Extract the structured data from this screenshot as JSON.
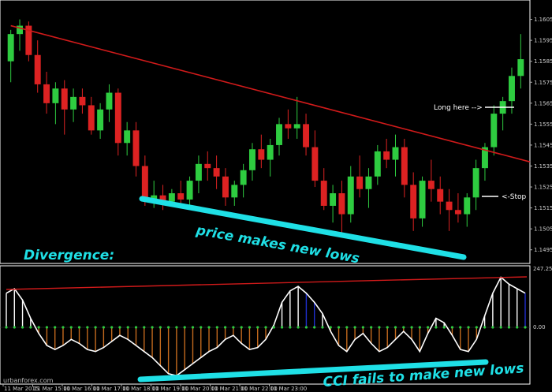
{
  "chart_data": [
    {
      "type": "candlestick",
      "y_ticks": [
        "1.1605",
        "1.1595",
        "1.1585",
        "1.1575",
        "1.1565",
        "1.1555",
        "1.1545",
        "1.1535",
        "1.1525",
        "1.1515",
        "1.1505",
        "1.1495"
      ],
      "ylim": [
        1.149,
        1.1612
      ],
      "candles": [
        [
          1.1585,
          1.16,
          1.1575,
          1.1598
        ],
        [
          1.1598,
          1.1605,
          1.159,
          1.1602
        ],
        [
          1.1602,
          1.1604,
          1.1585,
          1.1588
        ],
        [
          1.1588,
          1.1595,
          1.157,
          1.1574
        ],
        [
          1.1574,
          1.158,
          1.156,
          1.1565
        ],
        [
          1.1565,
          1.1575,
          1.1555,
          1.1572
        ],
        [
          1.1572,
          1.1576,
          1.155,
          1.1562
        ],
        [
          1.1562,
          1.1572,
          1.1556,
          1.1568
        ],
        [
          1.1568,
          1.1572,
          1.156,
          1.1564
        ],
        [
          1.1564,
          1.1568,
          1.155,
          1.1552
        ],
        [
          1.1552,
          1.1565,
          1.1548,
          1.1562
        ],
        [
          1.1562,
          1.1574,
          1.1556,
          1.157
        ],
        [
          1.157,
          1.1572,
          1.154,
          1.1546
        ],
        [
          1.1546,
          1.1556,
          1.154,
          1.1552
        ],
        [
          1.1552,
          1.1556,
          1.153,
          1.1535
        ],
        [
          1.1535,
          1.154,
          1.1516,
          1.1519
        ],
        [
          1.1519,
          1.1528,
          1.1515,
          1.1521
        ],
        [
          1.1521,
          1.1526,
          1.1514,
          1.1518
        ],
        [
          1.1518,
          1.1524,
          1.1516,
          1.1522
        ],
        [
          1.1522,
          1.1528,
          1.1515,
          1.1519
        ],
        [
          1.1519,
          1.153,
          1.1516,
          1.1528
        ],
        [
          1.1528,
          1.154,
          1.1522,
          1.1536
        ],
        [
          1.1536,
          1.1542,
          1.1528,
          1.1534
        ],
        [
          1.1534,
          1.154,
          1.1524,
          1.153
        ],
        [
          1.153,
          1.1534,
          1.1516,
          1.152
        ],
        [
          1.152,
          1.1528,
          1.1516,
          1.1526
        ],
        [
          1.1526,
          1.1536,
          1.152,
          1.1533
        ],
        [
          1.1533,
          1.1546,
          1.1528,
          1.1543
        ],
        [
          1.1543,
          1.155,
          1.1534,
          1.1538
        ],
        [
          1.1538,
          1.1548,
          1.153,
          1.1545
        ],
        [
          1.1545,
          1.1558,
          1.154,
          1.1555
        ],
        [
          1.1555,
          1.1562,
          1.1548,
          1.1553
        ],
        [
          1.1553,
          1.1568,
          1.1548,
          1.1555
        ],
        [
          1.1555,
          1.156,
          1.154,
          1.1544
        ],
        [
          1.1544,
          1.1552,
          1.1525,
          1.1528
        ],
        [
          1.1528,
          1.1534,
          1.1514,
          1.1516
        ],
        [
          1.1516,
          1.1526,
          1.1508,
          1.1522
        ],
        [
          1.1522,
          1.1528,
          1.1502,
          1.1512
        ],
        [
          1.1512,
          1.1535,
          1.1508,
          1.153
        ],
        [
          1.153,
          1.154,
          1.152,
          1.1524
        ],
        [
          1.1524,
          1.1534,
          1.1515,
          1.153
        ],
        [
          1.153,
          1.1545,
          1.1526,
          1.1542
        ],
        [
          1.1542,
          1.1548,
          1.1534,
          1.1538
        ],
        [
          1.1538,
          1.155,
          1.153,
          1.1544
        ],
        [
          1.1544,
          1.1548,
          1.152,
          1.1526
        ],
        [
          1.1526,
          1.1532,
          1.1504,
          1.151
        ],
        [
          1.151,
          1.153,
          1.1506,
          1.1528
        ],
        [
          1.1528,
          1.1538,
          1.1518,
          1.1524
        ],
        [
          1.1524,
          1.153,
          1.1512,
          1.1518
        ],
        [
          1.1518,
          1.1524,
          1.1504,
          1.1514
        ],
        [
          1.1514,
          1.1522,
          1.1508,
          1.1512
        ],
        [
          1.1512,
          1.1522,
          1.1506,
          1.152
        ],
        [
          1.152,
          1.1538,
          1.1514,
          1.1534
        ],
        [
          1.1534,
          1.1546,
          1.1528,
          1.1544
        ],
        [
          1.1544,
          1.1564,
          1.154,
          1.156
        ],
        [
          1.156,
          1.1568,
          1.1552,
          1.1566
        ],
        [
          1.1566,
          1.1582,
          1.156,
          1.1578
        ],
        [
          1.1578,
          1.1598,
          1.1572,
          1.1586
        ]
      ],
      "trendline": {
        "from_index": 0,
        "from_value": 1.1602,
        "to_index": 57,
        "to_value": 1.1537
      },
      "annotations": [
        "Long here -->",
        "<-Stop"
      ],
      "headline": "Divergence:",
      "caption": "price makes new lows"
    },
    {
      "type": "histogram+line",
      "indicator": "CCI",
      "y_ticks": [
        "247.2589",
        "0.00"
      ],
      "ylim": [
        -270,
        260
      ],
      "x_ticks": [
        "11 Mar 2015",
        "11 Mar 15:00",
        "11 Mar 16:00",
        "11 Mar 17:00",
        "11 Mar 18:00",
        "11 Mar 19:00",
        "11 Mar 20:00",
        "11 Mar 21:00",
        "11 Mar 22:00",
        "11 Mar 23:00"
      ],
      "values": [
        150,
        170,
        120,
        40,
        -30,
        -90,
        -110,
        -90,
        -60,
        -80,
        -110,
        -120,
        -100,
        -70,
        -40,
        -60,
        -90,
        -120,
        -150,
        -190,
        -230,
        -240,
        -210,
        -180,
        -150,
        -120,
        -100,
        -60,
        -40,
        -80,
        -110,
        -100,
        -60,
        10,
        110,
        160,
        180,
        150,
        110,
        60,
        -20,
        -90,
        -120,
        -60,
        -30,
        -80,
        -120,
        -100,
        -60,
        -20,
        -60,
        -120,
        -30,
        40,
        20,
        -40,
        -110,
        -120,
        -60,
        50,
        150,
        220,
        190,
        170,
        150
      ]
    }
  ],
  "caption2": "CCI fails to make new lows",
  "watermark": "urbanforex.com",
  "colors": {
    "up": "#2ecc40",
    "down": "#dd2222",
    "trend": "#d01a1a",
    "neon": "#1fe0e6",
    "hist_down": "#c46a1e",
    "hist_up_blue": "#1f2fd0",
    "hist_white": "#ffffff"
  }
}
